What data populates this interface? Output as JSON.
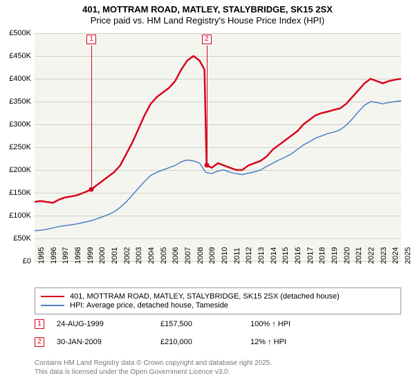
{
  "title": "401, MOTTRAM ROAD, MATLEY, STALYBRIDGE, SK15 2SX",
  "subtitle": "Price paid vs. HM Land Registry's House Price Index (HPI)",
  "chart": {
    "type": "line",
    "background_color": "#f5f5f0",
    "grid_color": "#d0d0c8",
    "x": {
      "min": 1995,
      "max": 2025,
      "tick_step": 1
    },
    "y": {
      "min": 0,
      "max": 500000,
      "tick_step": 50000,
      "prefix": "£",
      "suffix_k": "K"
    },
    "series": [
      {
        "id": "property",
        "label": "401, MOTTRAM ROAD, MATLEY, STALYBRIDGE, SK15 2SX (detached house)",
        "color": "#d9001b",
        "width": 2.5,
        "points": [
          [
            1995,
            130000
          ],
          [
            1995.5,
            132000
          ],
          [
            1996,
            130000
          ],
          [
            1996.5,
            128000
          ],
          [
            1997,
            135000
          ],
          [
            1997.5,
            140000
          ],
          [
            1998,
            142000
          ],
          [
            1998.5,
            145000
          ],
          [
            1999,
            150000
          ],
          [
            1999.65,
            157500
          ],
          [
            2000,
            165000
          ],
          [
            2000.5,
            175000
          ],
          [
            2001,
            185000
          ],
          [
            2001.5,
            195000
          ],
          [
            2002,
            210000
          ],
          [
            2002.5,
            235000
          ],
          [
            2003,
            260000
          ],
          [
            2003.5,
            290000
          ],
          [
            2004,
            320000
          ],
          [
            2004.5,
            345000
          ],
          [
            2005,
            360000
          ],
          [
            2005.5,
            370000
          ],
          [
            2006,
            380000
          ],
          [
            2006.5,
            395000
          ],
          [
            2007,
            420000
          ],
          [
            2007.5,
            440000
          ],
          [
            2008,
            450000
          ],
          [
            2008.5,
            440000
          ],
          [
            2008.9,
            420000
          ],
          [
            2009.08,
            210000
          ],
          [
            2009.5,
            205000
          ],
          [
            2010,
            215000
          ],
          [
            2010.5,
            210000
          ],
          [
            2011,
            205000
          ],
          [
            2011.5,
            200000
          ],
          [
            2012,
            200000
          ],
          [
            2012.5,
            210000
          ],
          [
            2013,
            215000
          ],
          [
            2013.5,
            220000
          ],
          [
            2014,
            230000
          ],
          [
            2014.5,
            245000
          ],
          [
            2015,
            255000
          ],
          [
            2015.5,
            265000
          ],
          [
            2016,
            275000
          ],
          [
            2016.5,
            285000
          ],
          [
            2017,
            300000
          ],
          [
            2017.5,
            310000
          ],
          [
            2018,
            320000
          ],
          [
            2018.5,
            325000
          ],
          [
            2019,
            328000
          ],
          [
            2019.5,
            332000
          ],
          [
            2020,
            335000
          ],
          [
            2020.5,
            345000
          ],
          [
            2021,
            360000
          ],
          [
            2021.5,
            375000
          ],
          [
            2022,
            390000
          ],
          [
            2022.5,
            400000
          ],
          [
            2023,
            395000
          ],
          [
            2023.5,
            390000
          ],
          [
            2024,
            395000
          ],
          [
            2024.5,
            398000
          ],
          [
            2025,
            400000
          ]
        ]
      },
      {
        "id": "hpi",
        "label": "HPI: Average price, detached house, Tameside",
        "color": "#4a7ec9",
        "width": 1.5,
        "points": [
          [
            1995,
            67000
          ],
          [
            1995.5,
            68000
          ],
          [
            1996,
            70000
          ],
          [
            1996.5,
            73000
          ],
          [
            1997,
            76000
          ],
          [
            1997.5,
            78000
          ],
          [
            1998,
            80000
          ],
          [
            1998.5,
            82000
          ],
          [
            1999,
            85000
          ],
          [
            1999.5,
            88000
          ],
          [
            2000,
            92000
          ],
          [
            2000.5,
            97000
          ],
          [
            2001,
            102000
          ],
          [
            2001.5,
            108000
          ],
          [
            2002,
            118000
          ],
          [
            2002.5,
            130000
          ],
          [
            2003,
            145000
          ],
          [
            2003.5,
            160000
          ],
          [
            2004,
            175000
          ],
          [
            2004.5,
            188000
          ],
          [
            2005,
            195000
          ],
          [
            2005.5,
            200000
          ],
          [
            2006,
            205000
          ],
          [
            2006.5,
            210000
          ],
          [
            2007,
            218000
          ],
          [
            2007.5,
            222000
          ],
          [
            2008,
            220000
          ],
          [
            2008.5,
            215000
          ],
          [
            2009,
            195000
          ],
          [
            2009.5,
            192000
          ],
          [
            2010,
            198000
          ],
          [
            2010.5,
            200000
          ],
          [
            2011,
            195000
          ],
          [
            2011.5,
            192000
          ],
          [
            2012,
            190000
          ],
          [
            2012.5,
            193000
          ],
          [
            2013,
            196000
          ],
          [
            2013.5,
            200000
          ],
          [
            2014,
            208000
          ],
          [
            2014.5,
            215000
          ],
          [
            2015,
            222000
          ],
          [
            2015.5,
            228000
          ],
          [
            2016,
            235000
          ],
          [
            2016.5,
            245000
          ],
          [
            2017,
            255000
          ],
          [
            2017.5,
            262000
          ],
          [
            2018,
            270000
          ],
          [
            2018.5,
            275000
          ],
          [
            2019,
            280000
          ],
          [
            2019.5,
            283000
          ],
          [
            2020,
            288000
          ],
          [
            2020.5,
            298000
          ],
          [
            2021,
            312000
          ],
          [
            2021.5,
            328000
          ],
          [
            2022,
            342000
          ],
          [
            2022.5,
            350000
          ],
          [
            2023,
            348000
          ],
          [
            2023.5,
            345000
          ],
          [
            2024,
            348000
          ],
          [
            2024.5,
            350000
          ],
          [
            2025,
            352000
          ]
        ]
      }
    ],
    "sale_markers": [
      {
        "num": "1",
        "x": 1999.65,
        "y": 157500,
        "color": "#d9001b"
      },
      {
        "num": "2",
        "x": 2009.08,
        "y": 210000,
        "color": "#d9001b"
      }
    ]
  },
  "sale_rows": [
    {
      "num": "1",
      "date": "24-AUG-1999",
      "price": "£157,500",
      "hpi": "100% ↑ HPI",
      "color": "#d9001b"
    },
    {
      "num": "2",
      "date": "30-JAN-2009",
      "price": "£210,000",
      "hpi": "12% ↑ HPI",
      "color": "#d9001b"
    }
  ],
  "credit_line1": "Contains HM Land Registry data © Crown copyright and database right 2025.",
  "credit_line2": "This data is licensed under the Open Government Licence v3.0."
}
